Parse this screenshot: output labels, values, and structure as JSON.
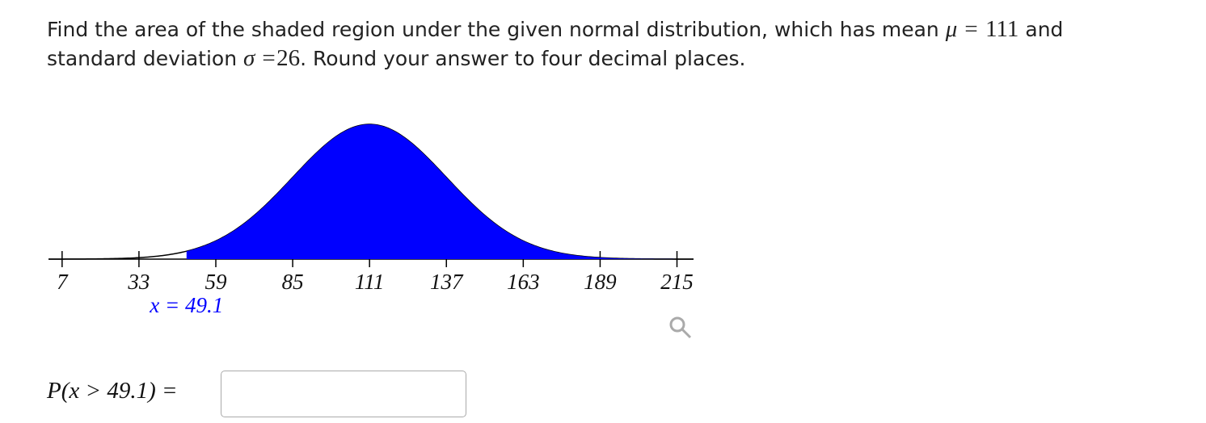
{
  "question": {
    "text_1": "Find the area of the shaded region under the given normal distribution, which has mean",
    "mean_label": "μ =",
    "text_2": "and",
    "text_3": "standard deviation",
    "sd_label": "σ =",
    "text_4": ". Round your answer to four decimal places."
  },
  "chart_data": {
    "type": "normal",
    "mean": 111,
    "sd": 26,
    "threshold": 49.1,
    "threshold_label": "x = 49.1",
    "shade": "right",
    "color": "#0000ff",
    "xlim": [
      2.4,
      220.6
    ],
    "xticks": [
      7,
      33,
      59,
      85,
      111,
      137,
      163,
      189,
      215
    ]
  },
  "answer": {
    "label": "P(x > 49.1) ="
  }
}
